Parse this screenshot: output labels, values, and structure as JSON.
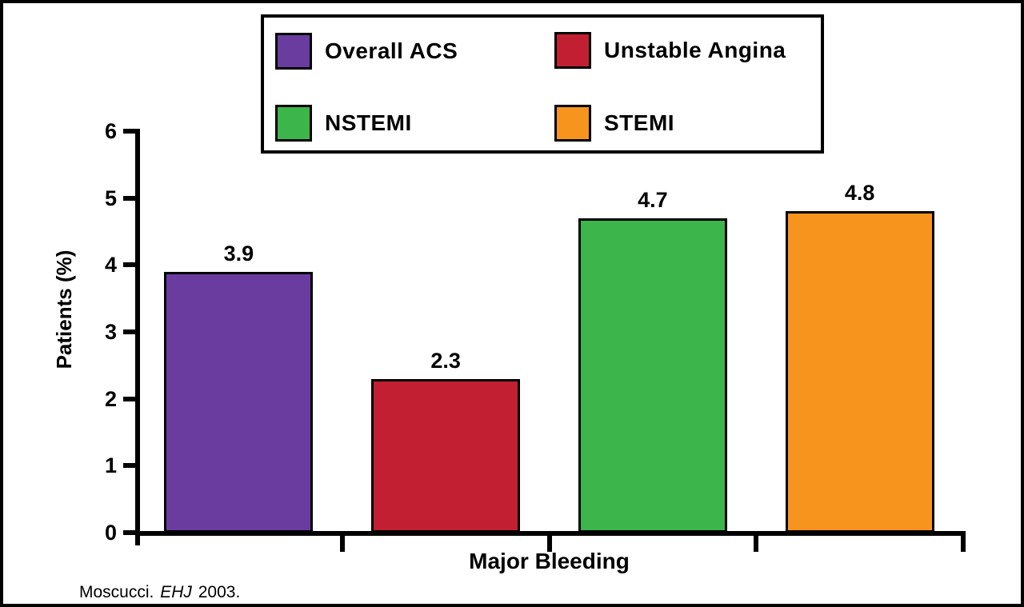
{
  "chart_data": {
    "type": "bar",
    "title": "",
    "categories": [
      "Major Bleeding"
    ],
    "series": [
      {
        "name": "Overall ACS",
        "value": 3.9,
        "label": "3.9",
        "color": "#6A3C9F"
      },
      {
        "name": "Unstable Angina",
        "value": 2.3,
        "label": "2.3",
        "color": "#C22032"
      },
      {
        "name": "NSTEMI",
        "value": 4.7,
        "label": "4.7",
        "color": "#3CB54A"
      },
      {
        "name": "STEMI",
        "value": 4.8,
        "label": "4.8",
        "color": "#F7941E"
      }
    ],
    "xlabel": "Major Bleeding",
    "ylabel": "Patients (%)",
    "ylim": [
      0,
      6
    ],
    "yticks": [
      0,
      1,
      2,
      3,
      4,
      5,
      6
    ],
    "grid": false,
    "legend_position": "top",
    "bar_labels_shown": true
  },
  "legend": {
    "items": [
      {
        "label": "Overall ACS",
        "color": "#6A3C9F"
      },
      {
        "label": "Unstable Angina",
        "color": "#C22032"
      },
      {
        "label": "NSTEMI",
        "color": "#3CB54A"
      },
      {
        "label": "STEMI",
        "color": "#F7941E"
      }
    ]
  },
  "footer": {
    "citation_author": "Moscucci.",
    "citation_journal": "EHJ",
    "citation_year": "2003."
  },
  "colors": {
    "axis": "#000000",
    "background": "#ffffff",
    "text": "#000000"
  }
}
